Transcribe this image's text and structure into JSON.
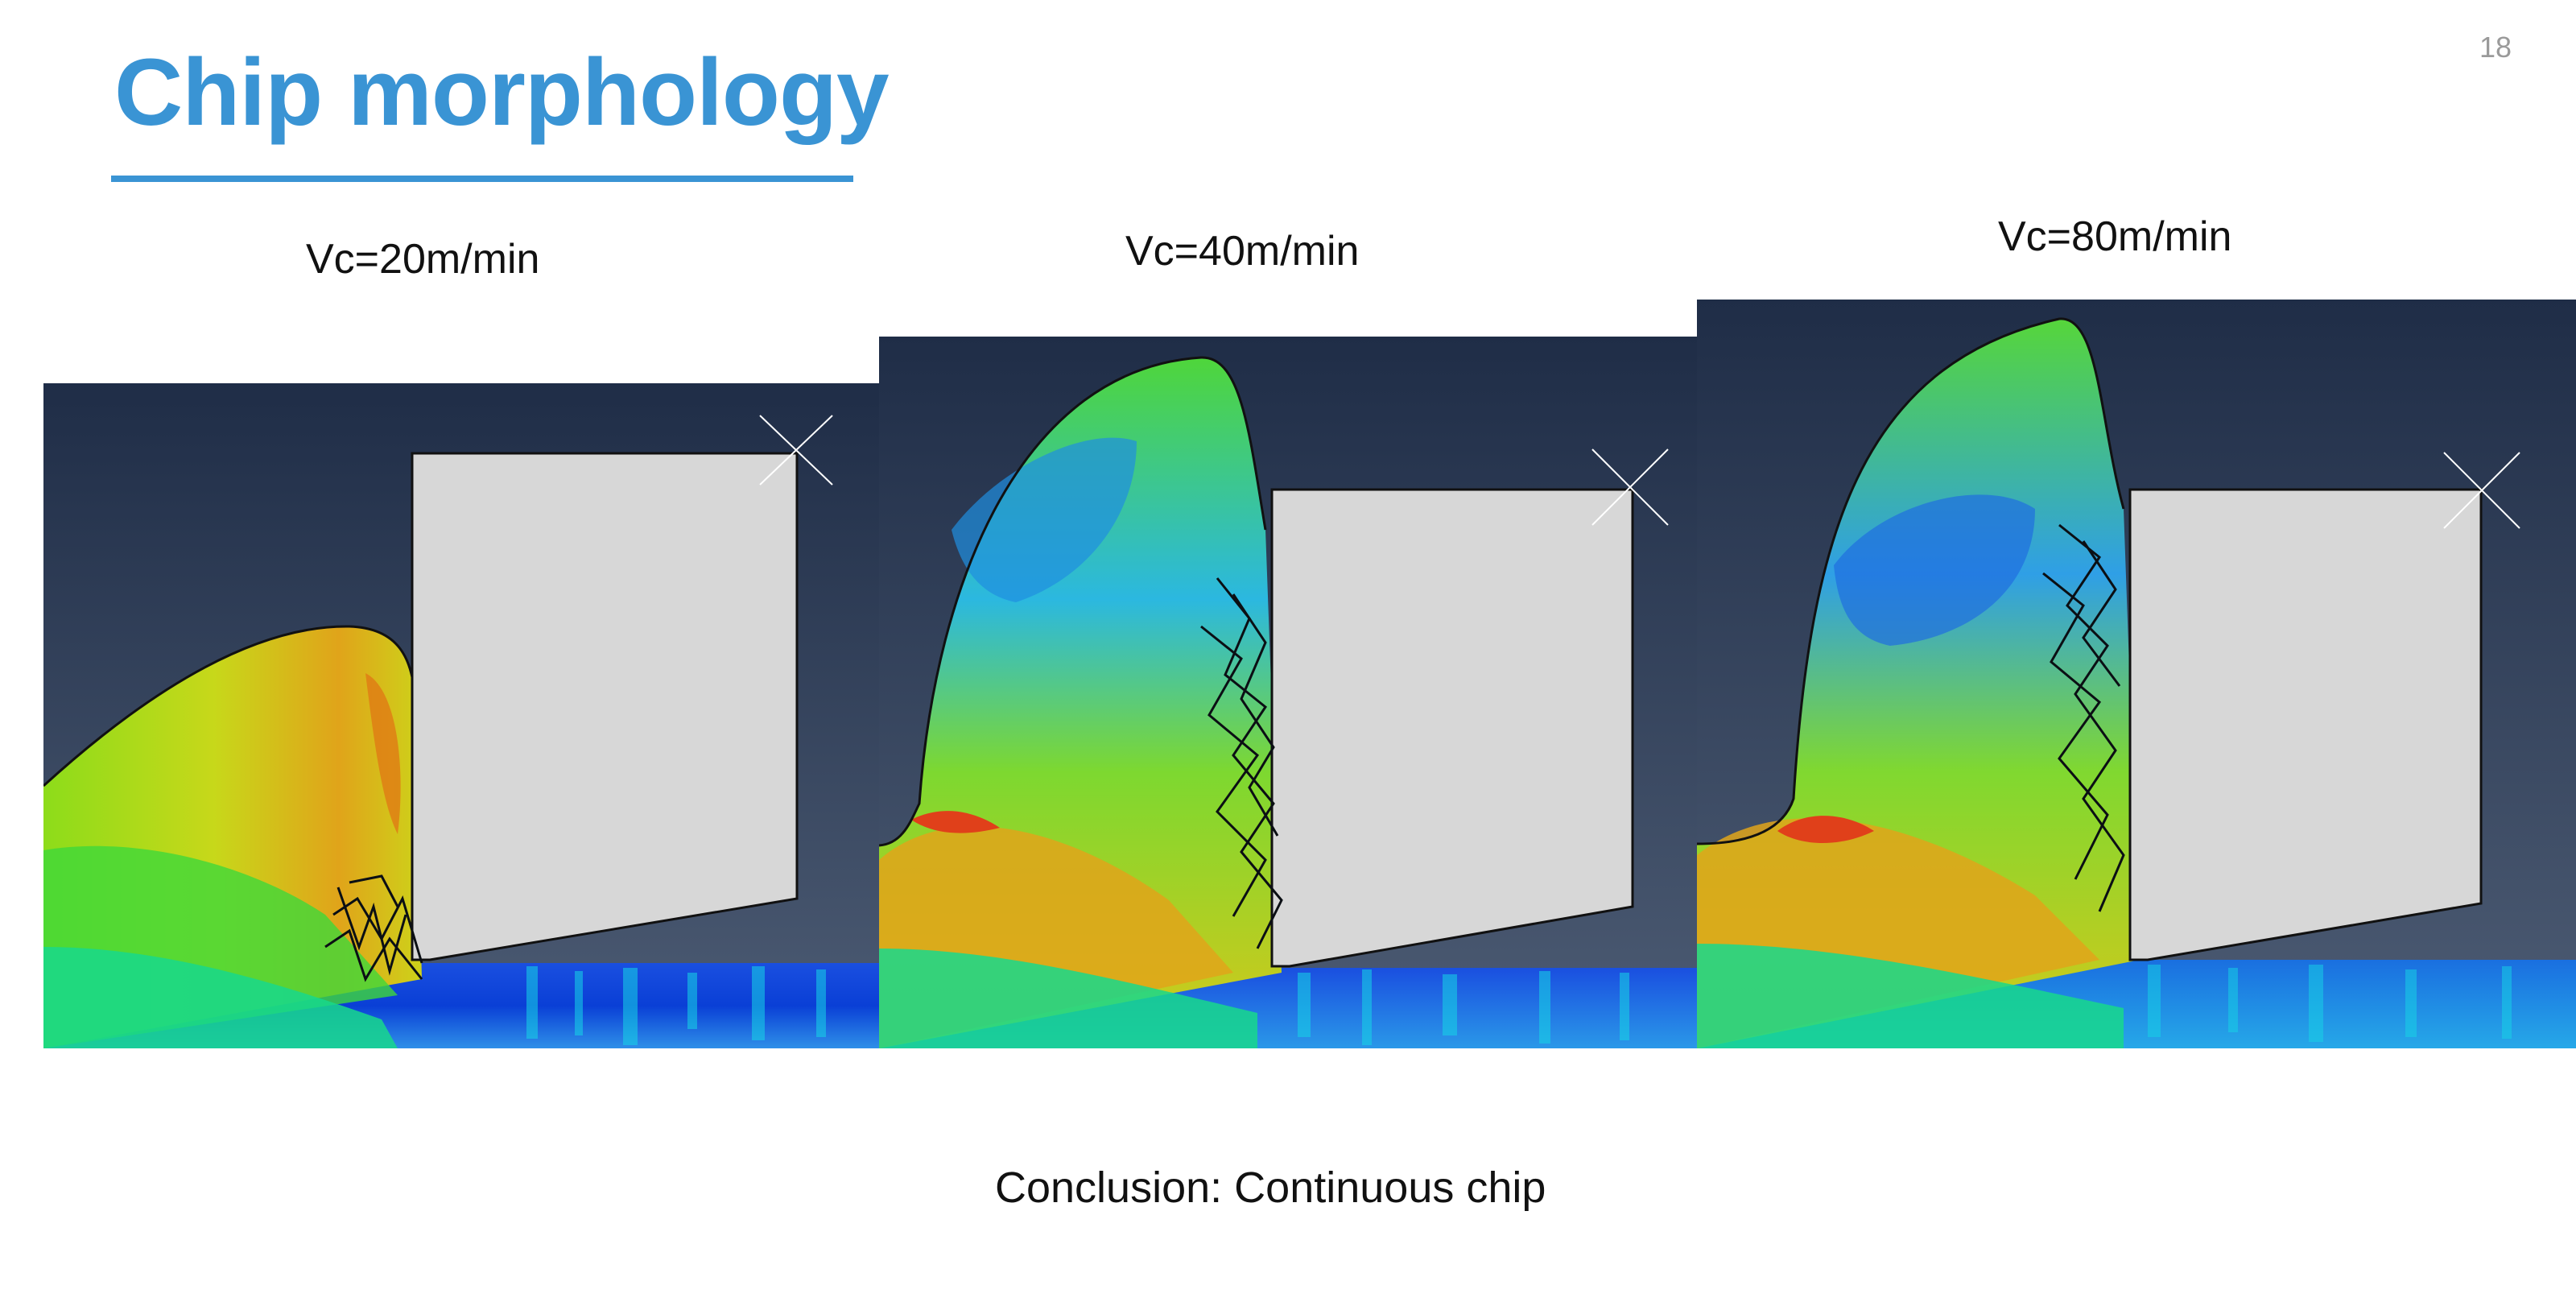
{
  "slide": {
    "page_number": "18",
    "title": "Chip morphology",
    "conclusion": "Conclusion: Continuous chip"
  },
  "panels": [
    {
      "label": "Vc=20m/min"
    },
    {
      "label": "Vc=40m/min"
    },
    {
      "label": "Vc=80m/min"
    }
  ],
  "colors": {
    "title": "#3a94d4",
    "background_top": "#1f2d47",
    "background_bottom": "#4d5c74",
    "tool_fill": "#d7d7d7",
    "stress_low": "#0a3fd6",
    "stress_mid": "#22d84a",
    "stress_high": "#e0401a"
  }
}
